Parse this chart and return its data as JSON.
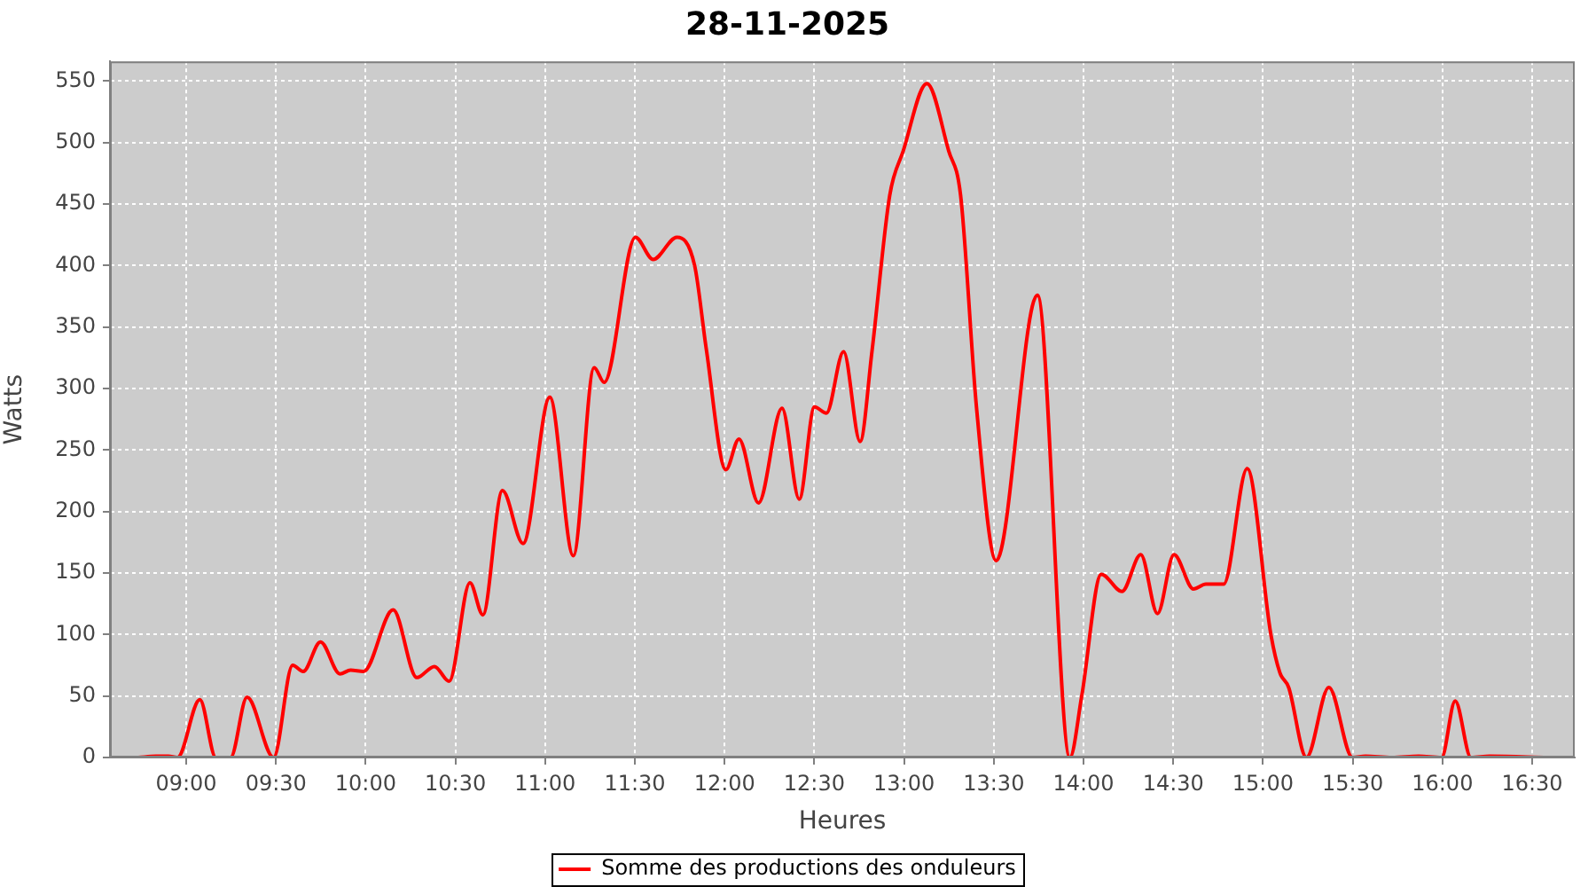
{
  "chart_data": {
    "type": "line",
    "title": "28-11-2025",
    "xlabel": "Heures",
    "ylabel": "Watts",
    "x": [
      8.733,
      8.832,
      8.901,
      8.951,
      9.076,
      9.165,
      9.247,
      9.339,
      9.487,
      9.593,
      9.652,
      9.748,
      9.857,
      9.916,
      9.988,
      10.153,
      10.285,
      10.383,
      10.465,
      10.581,
      10.653,
      10.762,
      10.877,
      11.026,
      11.157,
      11.273,
      11.329,
      11.503,
      11.602,
      11.734,
      11.833,
      11.898,
      12.007,
      12.08,
      12.189,
      12.32,
      12.416,
      12.501,
      12.567,
      12.663,
      12.755,
      12.821,
      12.92,
      12.995,
      13.127,
      13.249,
      13.315,
      13.404,
      13.513,
      13.743,
      13.924,
      13.99,
      14.099,
      14.214,
      14.319,
      14.412,
      14.504,
      14.613,
      14.682,
      14.781,
      14.912,
      15.044,
      15.094,
      15.143,
      15.242,
      15.367,
      15.499,
      15.571,
      15.719,
      15.867,
      15.995,
      16.071,
      16.159,
      16.263,
      16.586
    ],
    "series": [
      {
        "name": "Somme des productions des onduleurs",
        "color": "#ff0000",
        "values": [
          0,
          1,
          1,
          0,
          47,
          0,
          0,
          49,
          0,
          75,
          70,
          94,
          68,
          71,
          70,
          120,
          65,
          74,
          62,
          142,
          116,
          217,
          174,
          293,
          164,
          317,
          305,
          423,
          405,
          423,
          400,
          332,
          234,
          259,
          207,
          284,
          210,
          285,
          280,
          330,
          257,
          330,
          457,
          493,
          548,
          493,
          457,
          284,
          160,
          376,
          0,
          50,
          149,
          135,
          165,
          117,
          165,
          137,
          141,
          141,
          235,
          100,
          69,
          57,
          0,
          57,
          0,
          1,
          0,
          1,
          0,
          46,
          0,
          1,
          0
        ]
      }
    ],
    "xlim": [
      8.575,
      16.737
    ],
    "xticks": [
      {
        "value": 9,
        "label": "09:00"
      },
      {
        "value": 9.5,
        "label": "09:30"
      },
      {
        "value": 10,
        "label": "10:00"
      },
      {
        "value": 10.5,
        "label": "10:30"
      },
      {
        "value": 11,
        "label": "11:00"
      },
      {
        "value": 11.5,
        "label": "11:30"
      },
      {
        "value": 12,
        "label": "12:00"
      },
      {
        "value": 12.5,
        "label": "12:30"
      },
      {
        "value": 13,
        "label": "13:00"
      },
      {
        "value": 13.5,
        "label": "13:30"
      },
      {
        "value": 14,
        "label": "14:00"
      },
      {
        "value": 14.5,
        "label": "14:30"
      },
      {
        "value": 15,
        "label": "15:00"
      },
      {
        "value": 15.5,
        "label": "15:30"
      },
      {
        "value": 16,
        "label": "16:00"
      },
      {
        "value": 16.5,
        "label": "16:30"
      }
    ],
    "ylim": [
      0,
      566
    ],
    "yticks": [
      0,
      50,
      100,
      150,
      200,
      250,
      300,
      350,
      400,
      450,
      500,
      550
    ],
    "grid": true,
    "legend": "bottom",
    "marker": "none",
    "line_style": "solid"
  }
}
